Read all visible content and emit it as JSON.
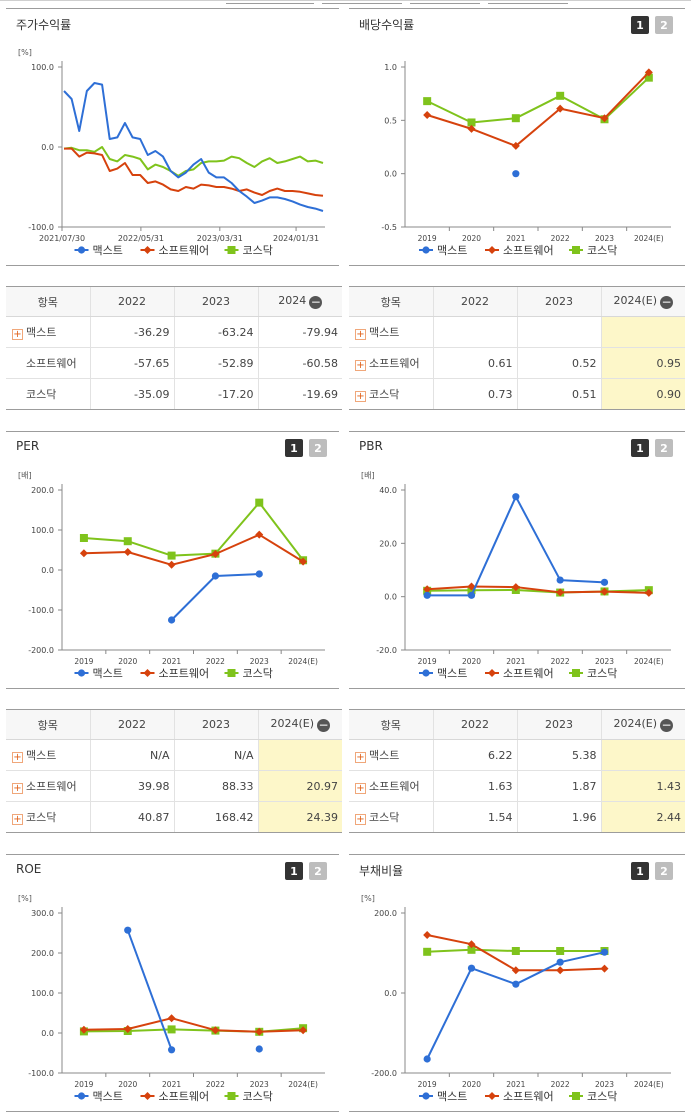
{
  "legend_labels": [
    "맥스트",
    "소프트웨어",
    "코스닥"
  ],
  "colors": {
    "s1": "#2e6fd6",
    "s2": "#d6420d",
    "s3": "#7fc31c"
  },
  "panels": {
    "stock": {
      "title": "주가수익률",
      "unit": "[%]",
      "chart_data": {
        "type": "line",
        "y_ticks": [
          "100.0",
          "0.0",
          "-100.0"
        ],
        "ylim": [
          -100,
          100
        ],
        "x_ticks": [
          "2021/07/30",
          "2022/05/31",
          "2023/03/31",
          "2024/01/31"
        ],
        "series": [
          {
            "name": "맥스트",
            "values": [
              70,
              60,
              20,
              70,
              80,
              78,
              10,
              12,
              30,
              12,
              10,
              -10,
              -5,
              -12,
              -30,
              -38,
              -32,
              -22,
              -15,
              -32,
              -38,
              -38,
              -45,
              -55,
              -62,
              -70,
              -67,
              -63,
              -63,
              -65,
              -68,
              -72,
              -75,
              -77,
              -80
            ]
          },
          {
            "name": "소프트웨어",
            "values": [
              -2,
              -2,
              -12,
              -7,
              -8,
              -10,
              -30,
              -27,
              -20,
              -35,
              -35,
              -45,
              -43,
              -47,
              -53,
              -55,
              -50,
              -52,
              -47,
              -48,
              -50,
              -50,
              -52,
              -55,
              -53,
              -57,
              -60,
              -55,
              -52,
              -55,
              -55,
              -56,
              -58,
              -60,
              -61
            ]
          },
          {
            "name": "코스닥",
            "values": [
              -2,
              -1,
              -4,
              -4,
              -6,
              0,
              -15,
              -18,
              -10,
              -12,
              -15,
              -28,
              -22,
              -25,
              -30,
              -36,
              -30,
              -28,
              -20,
              -18,
              -18,
              -17,
              -12,
              -14,
              -20,
              -25,
              -18,
              -14,
              -20,
              -18,
              -15,
              -12,
              -18,
              -17,
              -20
            ]
          }
        ]
      }
    },
    "dividend": {
      "title": "배당수익률",
      "btn1": "1",
      "btn2": "2",
      "chart_data": {
        "type": "line",
        "categories": [
          "2019",
          "2020",
          "2021",
          "2022",
          "2023",
          "2024(E)"
        ],
        "y_ticks": [
          "1.0",
          "0.5",
          "0.0",
          "-0.5"
        ],
        "ylim": [
          -0.5,
          1.0
        ],
        "series": [
          {
            "name": "맥스트",
            "values": [
              null,
              null,
              0.0,
              null,
              null,
              null
            ]
          },
          {
            "name": "소프트웨어",
            "values": [
              0.55,
              0.42,
              0.26,
              0.61,
              0.52,
              0.95
            ]
          },
          {
            "name": "코스닥",
            "values": [
              0.68,
              0.48,
              0.52,
              0.73,
              0.51,
              0.9
            ]
          }
        ]
      }
    },
    "per": {
      "title": "PER",
      "unit": "[배]",
      "btn1": "1",
      "btn2": "2",
      "chart_data": {
        "type": "line",
        "categories": [
          "2019",
          "2020",
          "2021",
          "2022",
          "2023",
          "2024(E)"
        ],
        "y_ticks": [
          "200.0",
          "100.0",
          "0.0",
          "-100.0",
          "-200.0"
        ],
        "ylim": [
          -200,
          200
        ],
        "series": [
          {
            "name": "맥스트",
            "values": [
              null,
              null,
              -125,
              -15,
              -10,
              null
            ]
          },
          {
            "name": "소프트웨어",
            "values": [
              42,
              45,
              13,
              39.98,
              88.33,
              20.97
            ]
          },
          {
            "name": "코스닥",
            "values": [
              80,
              72,
              36,
              40.87,
              168.42,
              24.39
            ]
          }
        ]
      }
    },
    "pbr": {
      "title": "PBR",
      "unit": "[배]",
      "btn1": "1",
      "btn2": "2",
      "chart_data": {
        "type": "line",
        "categories": [
          "2019",
          "2020",
          "2021",
          "2022",
          "2023",
          "2024(E)"
        ],
        "y_ticks": [
          "40.0",
          "20.0",
          "0.0",
          "-20.0"
        ],
        "ylim": [
          -20,
          40
        ],
        "series": [
          {
            "name": "맥스트",
            "values": [
              0.5,
              0.5,
              37.5,
              6.22,
              5.38,
              null
            ]
          },
          {
            "name": "소프트웨어",
            "values": [
              2.8,
              3.8,
              3.6,
              1.63,
              1.87,
              1.43
            ]
          },
          {
            "name": "코스닥",
            "values": [
              2.2,
              2.4,
              2.5,
              1.54,
              1.96,
              2.44
            ]
          }
        ]
      }
    },
    "roe": {
      "title": "ROE",
      "unit": "[%]",
      "btn1": "1",
      "btn2": "2",
      "chart_data": {
        "type": "line",
        "categories": [
          "2019",
          "2020",
          "2021",
          "2022",
          "2023",
          "2024(E)"
        ],
        "y_ticks": [
          "300.0",
          "200.0",
          "100.0",
          "0.0",
          "-100.0"
        ],
        "ylim": [
          -100,
          300
        ],
        "series": [
          {
            "name": "맥스트",
            "values": [
              null,
              257,
              -42,
              null,
              -40,
              null
            ]
          },
          {
            "name": "소프트웨어",
            "values": [
              8,
              10,
              37,
              7,
              3,
              7
            ]
          },
          {
            "name": "코스닥",
            "values": [
              4,
              5,
              9,
              6,
              3,
              12
            ]
          }
        ]
      }
    },
    "debt": {
      "title": "부채비율",
      "unit": "[%]",
      "btn1": "1",
      "btn2": "2",
      "chart_data": {
        "type": "line",
        "categories": [
          "2019",
          "2020",
          "2021",
          "2022",
          "2023",
          "2024(E)"
        ],
        "y_ticks": [
          "200.0",
          "0.0",
          "-200.0"
        ],
        "ylim": [
          -200,
          200
        ],
        "series": [
          {
            "name": "맥스트",
            "values": [
              -165,
              62,
              22,
              77,
              102,
              null
            ]
          },
          {
            "name": "소프트웨어",
            "values": [
              145,
              122,
              57,
              57,
              61,
              null
            ]
          },
          {
            "name": "코스닥",
            "values": [
              103,
              108,
              105,
              105,
              105,
              null
            ]
          }
        ]
      }
    }
  },
  "tables": {
    "stock": {
      "headers": [
        "항목",
        "2022",
        "2023",
        "2024"
      ],
      "rows": [
        {
          "name": "맥스트",
          "plus": true,
          "values": [
            "-36.29",
            "-63.24",
            "-79.94"
          ]
        },
        {
          "name": "소프트웨어",
          "plus": false,
          "values": [
            "-57.65",
            "-52.89",
            "-60.58"
          ]
        },
        {
          "name": "코스닥",
          "plus": false,
          "values": [
            "-35.09",
            "-17.20",
            "-19.69"
          ]
        }
      ]
    },
    "dividend": {
      "headers": [
        "항목",
        "2022",
        "2023",
        "2024(E)"
      ],
      "rows": [
        {
          "name": "맥스트",
          "plus": true,
          "values": [
            "",
            "",
            ""
          ]
        },
        {
          "name": "소프트웨어",
          "plus": true,
          "values": [
            "0.61",
            "0.52",
            "0.95"
          ]
        },
        {
          "name": "코스닥",
          "plus": true,
          "values": [
            "0.73",
            "0.51",
            "0.90"
          ]
        }
      ]
    },
    "per": {
      "headers": [
        "항목",
        "2022",
        "2023",
        "2024(E)"
      ],
      "rows": [
        {
          "name": "맥스트",
          "plus": true,
          "values": [
            "N/A",
            "N/A",
            ""
          ]
        },
        {
          "name": "소프트웨어",
          "plus": true,
          "values": [
            "39.98",
            "88.33",
            "20.97"
          ]
        },
        {
          "name": "코스닥",
          "plus": true,
          "values": [
            "40.87",
            "168.42",
            "24.39"
          ]
        }
      ]
    },
    "pbr": {
      "headers": [
        "항목",
        "2022",
        "2023",
        "2024(E)"
      ],
      "rows": [
        {
          "name": "맥스트",
          "plus": true,
          "values": [
            "6.22",
            "5.38",
            ""
          ]
        },
        {
          "name": "소프트웨어",
          "plus": true,
          "values": [
            "1.63",
            "1.87",
            "1.43"
          ]
        },
        {
          "name": "코스닥",
          "plus": true,
          "values": [
            "1.54",
            "1.96",
            "2.44"
          ]
        }
      ]
    }
  }
}
